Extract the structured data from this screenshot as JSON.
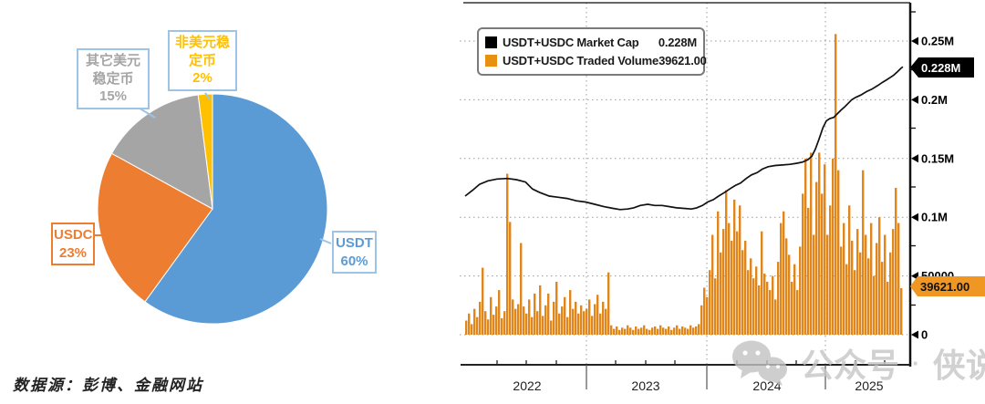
{
  "source_note": "数据源：彭博、金融网站",
  "watermark": {
    "icon": "wechat-icon",
    "text_part1": "公众号",
    "separator": "·",
    "text_part2": "侠说",
    "color": "#c6c6c6"
  },
  "chart_data": [
    {
      "type": "pie",
      "title": "",
      "legend_position": "callouts",
      "slices": [
        {
          "label": "USDT",
          "pct": 60,
          "color": "#5B9BD5",
          "label_color": "#5B9BD5",
          "box_border": "#9DC3E6",
          "callout_lines": [
            "USDT",
            "60%"
          ]
        },
        {
          "label": "USDC",
          "pct": 23,
          "color": "#ED7D31",
          "label_color": "#ED7D31",
          "box_border": "#ED7D31",
          "callout_lines": [
            "USDC",
            "23%"
          ]
        },
        {
          "label": "其它美元稳定币",
          "pct": 15,
          "color": "#A5A5A5",
          "label_color": "#A5A5A5",
          "box_border": "#9DC3E6",
          "callout_lines": [
            "其它美元",
            "稳定币",
            "15%"
          ]
        },
        {
          "label": "非美元稳定币",
          "pct": 2,
          "color": "#FFC000",
          "label_color": "#FFC000",
          "box_border": "#9DC3E6",
          "callout_lines": [
            "非美元稳",
            "定币",
            "2%"
          ]
        }
      ],
      "source": "数据源：彭博、金融网站"
    },
    {
      "type": "line+bar",
      "grid": true,
      "legend": [
        {
          "swatch": "#000000",
          "label": "USDT+USDC Market Cap",
          "value": "0.228M"
        },
        {
          "swatch": "#E8900F",
          "label": "USDT+USDC Traded Volume",
          "value": "39621.00"
        }
      ],
      "y_axis": {
        "range": [
          0,
          260000
        ],
        "ticks": [
          {
            "value": 250000,
            "label": "0.25M"
          },
          {
            "value": 200000,
            "label": "0.2M"
          },
          {
            "value": 150000,
            "label": "0.15M"
          },
          {
            "value": 100000,
            "label": "0.1M"
          },
          {
            "value": 50000,
            "label": "50000"
          },
          {
            "value": 0,
            "label": "0"
          }
        ]
      },
      "x_axis": {
        "year_labels": [
          "2022",
          "2023",
          "2024",
          "2025"
        ]
      },
      "series": [
        {
          "name": "USDT+USDC Market Cap",
          "type": "line",
          "color": "#111111",
          "current_value_tag": "0.228M",
          "points": [
            [
              0.0,
              118000
            ],
            [
              0.017,
              123000
            ],
            [
              0.033,
              128000
            ],
            [
              0.052,
              131000
            ],
            [
              0.073,
              132500
            ],
            [
              0.096,
              133000
            ],
            [
              0.117,
              132000
            ],
            [
              0.138,
              130000
            ],
            [
              0.154,
              124000
            ],
            [
              0.171,
              121000
            ],
            [
              0.192,
              118000
            ],
            [
              0.213,
              117000
            ],
            [
              0.233,
              116000
            ],
            [
              0.254,
              114000
            ],
            [
              0.275,
              113000
            ],
            [
              0.296,
              111000
            ],
            [
              0.317,
              109000
            ],
            [
              0.338,
              107500
            ],
            [
              0.354,
              106500
            ],
            [
              0.371,
              107000
            ],
            [
              0.385,
              108000
            ],
            [
              0.4,
              110000
            ],
            [
              0.417,
              111000
            ],
            [
              0.433,
              110000
            ],
            [
              0.45,
              110000
            ],
            [
              0.467,
              109000
            ],
            [
              0.483,
              108000
            ],
            [
              0.5,
              107500
            ],
            [
              0.517,
              107000
            ],
            [
              0.529,
              108000
            ],
            [
              0.542,
              110000
            ],
            [
              0.554,
              113000
            ],
            [
              0.567,
              115000
            ],
            [
              0.579,
              118000
            ],
            [
              0.592,
              121000
            ],
            [
              0.604,
              124000
            ],
            [
              0.617,
              127000
            ],
            [
              0.629,
              129000
            ],
            [
              0.642,
              133000
            ],
            [
              0.654,
              136000
            ],
            [
              0.667,
              138000
            ],
            [
              0.679,
              141000
            ],
            [
              0.692,
              143000
            ],
            [
              0.708,
              144000
            ],
            [
              0.725,
              144500
            ],
            [
              0.742,
              145000
            ],
            [
              0.758,
              146000
            ],
            [
              0.771,
              147000
            ],
            [
              0.783,
              149000
            ],
            [
              0.792,
              152000
            ],
            [
              0.8,
              158000
            ],
            [
              0.808,
              166000
            ],
            [
              0.817,
              176000
            ],
            [
              0.825,
              182000
            ],
            [
              0.833,
              184000
            ],
            [
              0.842,
              185000
            ],
            [
              0.85,
              188000
            ],
            [
              0.858,
              191000
            ],
            [
              0.867,
              194000
            ],
            [
              0.875,
              197000
            ],
            [
              0.883,
              200000
            ],
            [
              0.892,
              202000
            ],
            [
              0.904,
              204000
            ],
            [
              0.917,
              207000
            ],
            [
              0.929,
              209000
            ],
            [
              0.942,
              212000
            ],
            [
              0.954,
              215000
            ],
            [
              0.963,
              217000
            ],
            [
              0.971,
              219000
            ],
            [
              0.979,
              221000
            ],
            [
              0.988,
              224000
            ],
            [
              0.996,
              227000
            ],
            [
              1.0,
              228000
            ]
          ]
        },
        {
          "name": "USDT+USDC Traded Volume",
          "type": "bar",
          "color": "#E0861A",
          "current_value_tag": "39621.00",
          "values": [
            12000,
            18000,
            9000,
            22000,
            15000,
            28000,
            57000,
            20000,
            13000,
            32000,
            17000,
            24000,
            38000,
            14000,
            20000,
            137000,
            96000,
            30000,
            22000,
            26000,
            78000,
            24000,
            18000,
            30000,
            15000,
            35000,
            20000,
            42000,
            16000,
            25000,
            35000,
            12000,
            28000,
            45000,
            18000,
            24000,
            32000,
            15000,
            38000,
            22000,
            28000,
            18000,
            25000,
            20000,
            22000,
            30000,
            16000,
            26000,
            34000,
            18000,
            28000,
            22000,
            53000,
            8000,
            5000,
            7000,
            4000,
            6000,
            5000,
            8000,
            6000,
            4000,
            7000,
            5000,
            6000,
            8000,
            5000,
            4000,
            6000,
            7000,
            5000,
            8000,
            6000,
            5000,
            7000,
            4000,
            6000,
            8000,
            5000,
            7000,
            6000,
            5000,
            8000,
            6000,
            7000,
            9000,
            25000,
            40000,
            32000,
            55000,
            85000,
            48000,
            105000,
            70000,
            90000,
            123000,
            95000,
            80000,
            115000,
            88000,
            110000,
            72000,
            80000,
            55000,
            65000,
            48000,
            58000,
            42000,
            88000,
            52000,
            45000,
            38000,
            50000,
            30000,
            62000,
            95000,
            105000,
            82000,
            68000,
            45000,
            60000,
            38000,
            75000,
            120000,
            150000,
            108000,
            155000,
            85000,
            130000,
            155000,
            120000,
            145000,
            85000,
            110000,
            150000,
            256000,
            140000,
            75000,
            95000,
            60000,
            110000,
            80000,
            55000,
            90000,
            70000,
            140000,
            85000,
            65000,
            95000,
            50000,
            78000,
            100000,
            62000,
            85000,
            45000,
            70000,
            90000,
            125000,
            95000,
            39621
          ]
        }
      ]
    }
  ]
}
